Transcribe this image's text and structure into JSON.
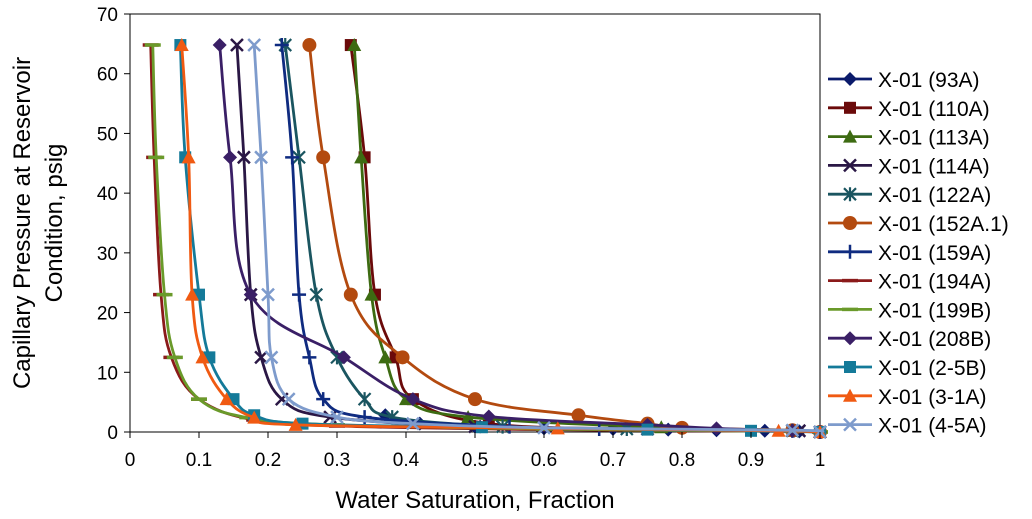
{
  "chart_data": {
    "type": "scatter",
    "xlabel": "Water Saturation, Fraction",
    "ylabel_lines": [
      "Capillary Pressure at Reservoir",
      "Condition, psig"
    ],
    "xlim": [
      0,
      1
    ],
    "ylim": [
      0,
      70
    ],
    "xticks": [
      "0",
      "0.1",
      "0.2",
      "0.3",
      "0.4",
      "0.5",
      "0.6",
      "0.7",
      "0.8",
      "0.9",
      "1"
    ],
    "yticks": [
      "0",
      "10",
      "20",
      "30",
      "40",
      "50",
      "60",
      "70"
    ],
    "grid": false,
    "legend_position": "right",
    "series": [
      {
        "name": "X-01 (93A)",
        "color": "#0a1a6b",
        "marker": "diamond",
        "points": [
          [
            0.37,
            2.8
          ],
          [
            0.42,
            1.4
          ],
          [
            0.5,
            0.9
          ],
          [
            0.6,
            0.6
          ],
          [
            0.7,
            0.5
          ],
          [
            0.78,
            0.4
          ],
          [
            0.85,
            0.3
          ],
          [
            0.92,
            0.2
          ],
          [
            0.97,
            0.1
          ],
          [
            1.0,
            0.0
          ]
        ]
      },
      {
        "name": "X-01 (110A)",
        "color": "#6b0a0a",
        "marker": "square",
        "points": [
          [
            0.32,
            64.8
          ],
          [
            0.34,
            46
          ],
          [
            0.355,
            23
          ],
          [
            0.385,
            12.5
          ],
          [
            0.41,
            5.5
          ],
          [
            0.52,
            1.4
          ],
          [
            0.75,
            0.5
          ],
          [
            0.96,
            0.2
          ],
          [
            1.0,
            0.0
          ]
        ]
      },
      {
        "name": "X-01 (113A)",
        "color": "#3d6b12",
        "marker": "triangle",
        "points": [
          [
            0.325,
            64.8
          ],
          [
            0.335,
            46
          ],
          [
            0.35,
            23
          ],
          [
            0.37,
            12.5
          ],
          [
            0.4,
            5.5
          ],
          [
            0.49,
            2.5
          ],
          [
            0.77,
            0.8
          ],
          [
            0.96,
            0.3
          ],
          [
            1.0,
            0.0
          ]
        ]
      },
      {
        "name": "X-01 (114A)",
        "color": "#2a1745",
        "marker": "x",
        "points": [
          [
            0.155,
            64.8
          ],
          [
            0.165,
            46
          ],
          [
            0.175,
            23
          ],
          [
            0.19,
            12.5
          ],
          [
            0.22,
            5.5
          ],
          [
            0.29,
            2.5
          ],
          [
            0.5,
            0.9
          ],
          [
            0.75,
            0.5
          ],
          [
            0.97,
            0.2
          ],
          [
            1.0,
            0.0
          ]
        ]
      },
      {
        "name": "X-01 (122A)",
        "color": "#1a5560",
        "marker": "star",
        "points": [
          [
            0.225,
            64.8
          ],
          [
            0.245,
            46
          ],
          [
            0.27,
            23
          ],
          [
            0.3,
            12.5
          ],
          [
            0.34,
            5.5
          ],
          [
            0.38,
            2.5
          ],
          [
            0.54,
            0.9
          ],
          [
            0.72,
            0.5
          ],
          [
            0.96,
            0.2
          ],
          [
            1.0,
            0.0
          ]
        ]
      },
      {
        "name": "X-01 (152A.1)",
        "color": "#b34a0f",
        "marker": "circle",
        "points": [
          [
            0.26,
            64.8
          ],
          [
            0.28,
            46
          ],
          [
            0.32,
            23
          ],
          [
            0.395,
            12.5
          ],
          [
            0.5,
            5.5
          ],
          [
            0.65,
            2.8
          ],
          [
            0.75,
            1.4
          ],
          [
            0.8,
            0.7
          ],
          [
            0.96,
            0.3
          ],
          [
            1.0,
            0.0
          ]
        ]
      },
      {
        "name": "X-01 (159A)",
        "color": "#0f2b80",
        "marker": "plus",
        "points": [
          [
            0.22,
            64.8
          ],
          [
            0.235,
            46
          ],
          [
            0.245,
            23
          ],
          [
            0.26,
            12.5
          ],
          [
            0.28,
            5.5
          ],
          [
            0.34,
            2.5
          ],
          [
            0.55,
            0.9
          ],
          [
            0.68,
            0.5
          ],
          [
            0.96,
            0.2
          ],
          [
            1.0,
            0.0
          ]
        ]
      },
      {
        "name": "X-01 (194A)",
        "color": "#8b1a1a",
        "marker": "dash",
        "points": [
          [
            0.03,
            64.8
          ],
          [
            0.035,
            46
          ],
          [
            0.045,
            23
          ],
          [
            0.06,
            12.5
          ],
          [
            0.1,
            5.5
          ],
          [
            0.18,
            2.0
          ],
          [
            0.3,
            1.0
          ],
          [
            0.6,
            0.4
          ],
          [
            0.96,
            0.1
          ],
          [
            1.0,
            0.0
          ]
        ]
      },
      {
        "name": "X-01 (199B)",
        "color": "#6a9a2a",
        "marker": "dash",
        "points": [
          [
            0.033,
            64.8
          ],
          [
            0.038,
            46
          ],
          [
            0.05,
            23
          ],
          [
            0.065,
            12.5
          ],
          [
            0.1,
            5.5
          ],
          [
            0.17,
            2.4
          ],
          [
            0.3,
            1.2
          ],
          [
            0.6,
            0.5
          ],
          [
            0.96,
            0.1
          ],
          [
            1.0,
            0.0
          ]
        ]
      },
      {
        "name": "X-01 (208B)",
        "color": "#3a1f66",
        "marker": "diamond",
        "points": [
          [
            0.13,
            64.8
          ],
          [
            0.145,
            46
          ],
          [
            0.175,
            23
          ],
          [
            0.31,
            12.5
          ],
          [
            0.41,
            5.5
          ],
          [
            0.52,
            2.6
          ],
          [
            0.75,
            1.2
          ],
          [
            0.85,
            0.6
          ],
          [
            0.96,
            0.2
          ],
          [
            1.0,
            0.0
          ]
        ]
      },
      {
        "name": "X-01 (2-5B)",
        "color": "#147a99",
        "marker": "square",
        "points": [
          [
            0.073,
            64.8
          ],
          [
            0.08,
            46
          ],
          [
            0.1,
            23
          ],
          [
            0.115,
            12.5
          ],
          [
            0.15,
            5.5
          ],
          [
            0.18,
            2.8
          ],
          [
            0.25,
            1.4
          ],
          [
            0.51,
            0.8
          ],
          [
            0.75,
            0.4
          ],
          [
            0.9,
            0.2
          ],
          [
            1.0,
            0.0
          ]
        ]
      },
      {
        "name": "X-01 (3-1A)",
        "color": "#f05a12",
        "marker": "triangle",
        "points": [
          [
            0.075,
            64.8
          ],
          [
            0.085,
            46
          ],
          [
            0.09,
            23
          ],
          [
            0.105,
            12.5
          ],
          [
            0.14,
            5.5
          ],
          [
            0.18,
            2.4
          ],
          [
            0.24,
            1.2
          ],
          [
            0.62,
            0.6
          ],
          [
            0.94,
            0.2
          ],
          [
            1.0,
            0.0
          ]
        ]
      },
      {
        "name": "X-01 (4-5A)",
        "color": "#7e9bcc",
        "marker": "x",
        "points": [
          [
            0.18,
            64.8
          ],
          [
            0.19,
            46
          ],
          [
            0.2,
            23
          ],
          [
            0.205,
            12.5
          ],
          [
            0.23,
            5.5
          ],
          [
            0.3,
            2.5
          ],
          [
            0.41,
            1.4
          ],
          [
            0.6,
            0.7
          ],
          [
            0.96,
            0.3
          ],
          [
            1.0,
            0.0
          ]
        ]
      }
    ]
  }
}
